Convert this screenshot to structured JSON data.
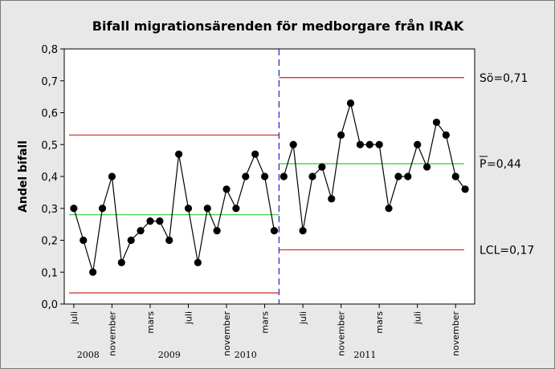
{
  "chart_data": {
    "type": "line",
    "title": "Bifall migrationsärenden för medborgare från IRAK",
    "ylabel": "Andel bifall",
    "ylim": [
      0.0,
      0.8
    ],
    "yticks": [
      "0,0",
      "0,1",
      "0,2",
      "0,3",
      "0,4",
      "0,5",
      "0,6",
      "0,7",
      "0,8"
    ],
    "ytick_values": [
      0.0,
      0.1,
      0.2,
      0.3,
      0.4,
      0.5,
      0.6,
      0.7,
      0.8
    ],
    "xticks": [
      {
        "index": 0,
        "label": "juli"
      },
      {
        "index": 4,
        "label": "november"
      },
      {
        "index": 8,
        "label": "mars"
      },
      {
        "index": 12,
        "label": "juli"
      },
      {
        "index": 16,
        "label": "november"
      },
      {
        "index": 20,
        "label": "mars"
      },
      {
        "index": 24,
        "label": "juli"
      },
      {
        "index": 28,
        "label": "november"
      },
      {
        "index": 32,
        "label": "mars"
      },
      {
        "index": 36,
        "label": "juli"
      },
      {
        "index": 40,
        "label": "november"
      }
    ],
    "years": [
      {
        "index": 1.5,
        "label": "2008"
      },
      {
        "index": 10,
        "label": "2009"
      },
      {
        "index": 18,
        "label": "2010"
      },
      {
        "index": 30.5,
        "label": "2011"
      }
    ],
    "x_range": [
      -1,
      42
    ],
    "values": [
      0.3,
      0.2,
      0.1,
      0.3,
      0.4,
      0.13,
      0.2,
      0.23,
      0.26,
      0.26,
      0.2,
      0.47,
      0.3,
      0.13,
      0.3,
      0.23,
      0.36,
      0.3,
      0.4,
      0.47,
      0.4,
      0.23,
      0.4,
      0.5,
      0.23,
      0.4,
      0.43,
      0.33,
      0.53,
      0.63,
      0.5,
      0.5,
      0.5,
      0.3,
      0.4,
      0.4,
      0.5,
      0.43,
      0.57,
      0.53,
      0.4,
      0.36
    ],
    "phase_split_index": 21.5,
    "phases": [
      {
        "start": -0.5,
        "end": 21.5,
        "center": 0.28,
        "ucl": 0.53,
        "lcl": 0.035
      },
      {
        "start": 21.5,
        "end": 40.9,
        "center": 0.44,
        "ucl": 0.71,
        "lcl": 0.17
      }
    ],
    "limit_labels": {
      "ucl": "Sö=0,71",
      "center_symbol": "P",
      "center_value": "=0,44",
      "lcl": "LCL=0,17"
    },
    "colors": {
      "background": "#e8e8e8",
      "plot_bg": "#ffffff",
      "data": "#000000",
      "limits": "#cc2222",
      "center": "#33cc33",
      "divider": "#2222cc"
    }
  }
}
